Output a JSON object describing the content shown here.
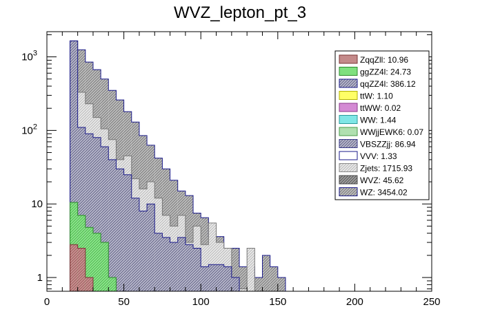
{
  "chart_data": {
    "type": "bar",
    "title": "WVZ_lepton_pt_3",
    "xlabel": "",
    "ylabel": "",
    "xlim": [
      0,
      250
    ],
    "ylim": [
      0.65,
      2200
    ],
    "yscale": "log",
    "grid": false,
    "stacked": true,
    "legend_position": "top-right",
    "bin_width": 5,
    "x_ticks": [
      {
        "value": 0,
        "label": "0"
      },
      {
        "value": 50,
        "label": "50"
      },
      {
        "value": 100,
        "label": "100"
      },
      {
        "value": 150,
        "label": "150"
      },
      {
        "value": 200,
        "label": "200"
      },
      {
        "value": 250,
        "label": "250"
      }
    ],
    "y_ticks": [
      {
        "value": 1,
        "base": "1",
        "exp": ""
      },
      {
        "value": 10,
        "base": "10",
        "exp": ""
      },
      {
        "value": 100,
        "base": "10",
        "exp": "2"
      },
      {
        "value": 1000,
        "base": "10",
        "exp": "3"
      }
    ],
    "stack_levels": [
      {
        "name": "ZqqZll",
        "values": [
          2.8,
          2.5,
          1.0,
          0,
          0,
          0,
          0,
          0,
          0,
          0,
          0,
          0,
          0,
          0,
          0,
          0,
          0,
          0,
          0,
          0,
          0,
          0,
          0,
          0,
          0,
          0,
          0,
          0
        ]
      },
      {
        "name": "ggZZ4l",
        "values": [
          10.5,
          7.0,
          4.8,
          4.0,
          3.0,
          1.0,
          0,
          0,
          0,
          0,
          0,
          0,
          0,
          0,
          0,
          0,
          0,
          0,
          0,
          0,
          0,
          0,
          0,
          0,
          0,
          0,
          0,
          0
        ]
      },
      {
        "name": "qqZZ4l",
        "values": [
          1650,
          110,
          90,
          80,
          60,
          40,
          30,
          25,
          12,
          8,
          10,
          4,
          3.5,
          3,
          3.5,
          2.8,
          2.5,
          1.4,
          1.5,
          1.5,
          1.4,
          1.0,
          0,
          0,
          0,
          0,
          0,
          0
        ]
      },
      {
        "name": "Zjets",
        "values": [
          1650,
          330,
          230,
          150,
          105,
          75,
          40,
          45,
          22,
          16,
          20,
          12,
          7.0,
          5.0,
          7.0,
          3.0,
          5.0,
          2.8,
          5.5,
          3.0,
          2.5,
          1.0,
          0.7,
          2.5,
          0,
          0,
          0,
          0
        ]
      },
      {
        "name": "WZ",
        "values": [
          1650,
          1250,
          850,
          670,
          500,
          350,
          260,
          180,
          130,
          85,
          63,
          42,
          30,
          21,
          15,
          13,
          7.5,
          6.5,
          3.6,
          3.6,
          2.5,
          2.5,
          1.4,
          1.4,
          1.0,
          2.0,
          1.4,
          1.0
        ]
      }
    ],
    "legend": [
      {
        "label": "ZqqZll: 10.96",
        "fill": "#c48a8a",
        "pattern": "solid",
        "border": "#7a3535"
      },
      {
        "label": "ggZZ4l: 24.73",
        "fill": "#7fe07f",
        "pattern": "solid",
        "border": "#2c8a2c"
      },
      {
        "label": "qqZZ4l: 386.12",
        "fill": "#9a9ab8",
        "pattern": "hatch",
        "border": "#1a1a8a"
      },
      {
        "label": "ttW: 1.10",
        "fill": "#ffff66",
        "pattern": "solid",
        "border": "#b0b000"
      },
      {
        "label": "ttWW: 0.02",
        "fill": "#d48ad4",
        "pattern": "solid",
        "border": "#8a3a8a"
      },
      {
        "label": "WW: 1.44",
        "fill": "#7fe6e6",
        "pattern": "solid",
        "border": "#2a9a9a"
      },
      {
        "label": "WWjjEWK6: 0.07",
        "fill": "#b0e0b0",
        "pattern": "solid",
        "border": "#4a9a4a"
      },
      {
        "label": "VBSZZjj: 86.94",
        "fill": "#a6a6c6",
        "pattern": "hatch",
        "border": "#3a3a8a"
      },
      {
        "label": "VVV: 1.33",
        "fill": "#ffffff",
        "pattern": "solid",
        "border": "#1a1a8a"
      },
      {
        "label": "Zjets: 1715.93",
        "fill": "#dcdcdc",
        "pattern": "hatch",
        "border": "#888888"
      },
      {
        "label": "WVZ: 45.62",
        "fill": "#9a9a9a",
        "pattern": "hatch",
        "border": "#444444"
      },
      {
        "label": "WZ: 3454.02",
        "fill": "#a8a8b8",
        "pattern": "hatch",
        "border": "#1a1a8a"
      }
    ],
    "colors": {
      "ZqqZll": "#c48a8a",
      "ggZZ4l": "#7fe07f",
      "qqZZ4l": "#9a9ab8",
      "Zjets": "#dcdcdc",
      "WZ": "#a8a8a8"
    }
  }
}
